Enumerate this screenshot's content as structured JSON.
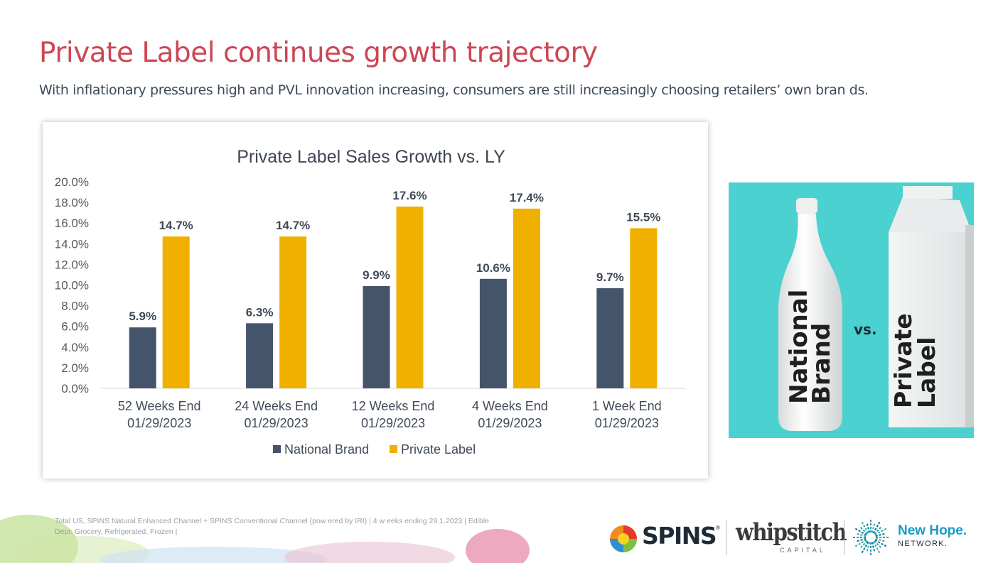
{
  "slide": {
    "title": "Private Label continues growth trajectory",
    "subtitle": "With inflationary pressures high and PVL innovation increasing, consumers are still increasingly choosing retailers’ own bran ds."
  },
  "chart_data": {
    "type": "bar",
    "title": "Private Label Sales Growth vs. LY",
    "categories": [
      [
        "52 Weeks End",
        "01/29/2023"
      ],
      [
        "24 Weeks End",
        "01/29/2023"
      ],
      [
        "12 Weeks End",
        "01/29/2023"
      ],
      [
        "4 Weeks End",
        "01/29/2023"
      ],
      [
        "1 Week End",
        "01/29/2023"
      ]
    ],
    "series": [
      {
        "name": "National Brand",
        "values": [
          5.9,
          6.3,
          9.9,
          10.6,
          9.7
        ],
        "labels": [
          "5.9%",
          "6.3%",
          "9.9%",
          "10.6%",
          "9.7%"
        ],
        "color": "#44546a"
      },
      {
        "name": "Private Label",
        "values": [
          14.7,
          14.7,
          17.6,
          17.4,
          15.5
        ],
        "labels": [
          "14.7%",
          "14.7%",
          "17.6%",
          "17.4%",
          "15.5%"
        ],
        "color": "#f0b000"
      }
    ],
    "ylim": [
      0,
      20
    ],
    "yticks": [
      "0.0%",
      "2.0%",
      "4.0%",
      "6.0%",
      "8.0%",
      "10.0%",
      "12.0%",
      "14.0%",
      "16.0%",
      "18.0%",
      "20.0%"
    ],
    "grid": false,
    "legend": "bottom-center",
    "xlabel": "",
    "ylabel": ""
  },
  "image_panel": {
    "bottle_text": [
      "National",
      "Brand"
    ],
    "versus": "vs.",
    "carton_text": [
      "Private",
      "Label"
    ],
    "background_color": "#4bd1cf"
  },
  "footer": {
    "source_line1": "Total US, SPINS  Natural Enhanced Channel + SPINS  Conventional Channel (pow ered by IRI) | 4 w eeks ending 29.1.2023 | Edible",
    "source_line2": "Dept: Grocery, Refrigerated, Frozen |"
  },
  "logos": {
    "spins": "SPINS",
    "spins_mark": "®",
    "whipstitch": "whipstitch",
    "whipstitch_sub": "CAPITAL",
    "newhope_title": "New Hope.",
    "newhope_sub": "NETWORK."
  }
}
